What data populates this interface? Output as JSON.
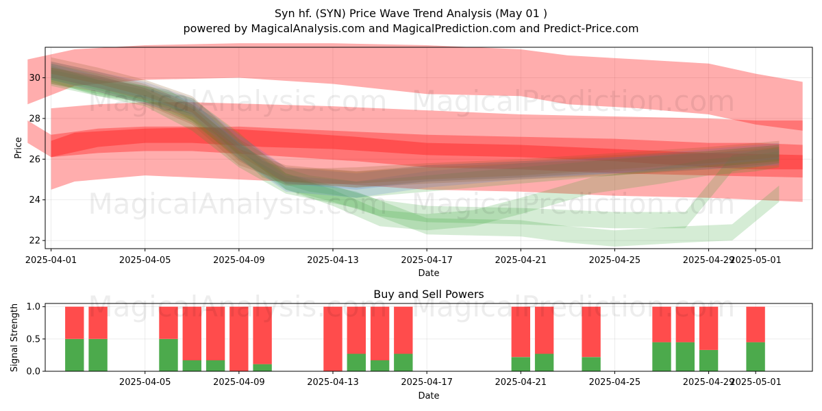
{
  "title_line1": "Syn hf. (SYN) Price Wave Trend Analysis (May 01 )",
  "title_line2": "powered by MagicalAnalysis.com and MagicalPrediction.com and Predict-Price.com",
  "watermarks": [
    "MagicalAnalysis.com",
    "MagicalPrediction.com"
  ],
  "colors": {
    "red_band": "#ff0000",
    "green_band": "#2ca02c",
    "blue_band": "#4a6fd0",
    "brown_band": "#8b5a2b",
    "buy": "#4caa4c",
    "sell": "#ff4c4c"
  },
  "chart_data": [
    {
      "type": "area",
      "xlabel": "Date",
      "ylabel": "Price",
      "xlim": [
        "2025-03-31 18:00",
        "2025-05-03 10:00"
      ],
      "ylim": [
        21.6,
        31.5
      ],
      "yticks": [
        22,
        24,
        26,
        28,
        30
      ],
      "x_tick_labels": [
        "2025-04-01",
        "2025-04-05",
        "2025-04-09",
        "2025-04-13",
        "2025-04-17",
        "2025-04-21",
        "2025-04-25",
        "2025-04-29",
        "2025-05-01"
      ],
      "x_tick_dates": [
        "2025-04-01",
        "2025-04-05",
        "2025-04-09",
        "2025-04-13",
        "2025-04-17",
        "2025-04-21",
        "2025-04-25",
        "2025-04-29",
        "2025-05-01"
      ],
      "grid": true,
      "red_bands": [
        {
          "dates": [
            "2025-03-31",
            "2025-04-02",
            "2025-04-05",
            "2025-04-09",
            "2025-04-13",
            "2025-04-17",
            "2025-04-21",
            "2025-04-23",
            "2025-04-26",
            "2025-04-29",
            "2025-05-01",
            "2025-05-03"
          ],
          "lower": [
            28.7,
            29.6,
            29.9,
            30.0,
            29.7,
            29.2,
            29.1,
            28.7,
            28.5,
            28.2,
            27.7,
            27.4
          ],
          "upper": [
            30.9,
            31.4,
            31.6,
            31.7,
            31.7,
            31.6,
            31.4,
            31.1,
            30.9,
            30.7,
            30.2,
            29.8
          ]
        },
        {
          "dates": [
            "2025-04-01",
            "2025-04-03",
            "2025-04-05",
            "2025-04-07",
            "2025-04-10",
            "2025-04-13",
            "2025-04-17",
            "2025-04-21",
            "2025-04-25",
            "2025-04-29",
            "2025-05-01",
            "2025-05-03"
          ],
          "lower": [
            26.1,
            26.6,
            26.8,
            26.8,
            26.6,
            26.5,
            26.2,
            26.1,
            25.9,
            25.6,
            25.5,
            25.5
          ],
          "upper": [
            28.5,
            28.7,
            28.8,
            28.8,
            28.7,
            28.6,
            28.4,
            28.2,
            28.1,
            28.0,
            27.9,
            27.9
          ]
        },
        {
          "dates": [
            "2025-03-31",
            "2025-04-01",
            "2025-04-03",
            "2025-04-05",
            "2025-04-07",
            "2025-04-10",
            "2025-04-14",
            "2025-04-17",
            "2025-04-21",
            "2025-04-25",
            "2025-04-29",
            "2025-05-03"
          ],
          "lower": [
            26.8,
            26.1,
            26.3,
            26.4,
            26.4,
            26.2,
            25.9,
            25.6,
            25.5,
            25.3,
            25.2,
            25.1
          ],
          "upper": [
            27.9,
            27.2,
            27.5,
            27.6,
            27.6,
            27.4,
            27.1,
            26.8,
            26.7,
            26.5,
            26.3,
            26.2
          ]
        },
        {
          "dates": [
            "2025-04-01",
            "2025-04-02",
            "2025-04-05",
            "2025-04-09",
            "2025-04-13",
            "2025-04-17",
            "2025-04-21",
            "2025-04-25",
            "2025-04-29",
            "2025-05-01",
            "2025-05-03"
          ],
          "lower": [
            24.5,
            24.9,
            25.2,
            25.0,
            24.8,
            24.5,
            24.4,
            24.2,
            24.1,
            24.0,
            23.9
          ],
          "upper": [
            26.9,
            27.3,
            27.5,
            27.6,
            27.4,
            27.2,
            27.1,
            27.0,
            26.8,
            26.8,
            26.7
          ]
        }
      ],
      "green_bands": [
        {
          "dates": [
            "2025-04-01",
            "2025-04-03",
            "2025-04-05",
            "2025-04-07",
            "2025-04-09",
            "2025-04-11",
            "2025-04-14",
            "2025-04-17",
            "2025-04-21",
            "2025-04-23",
            "2025-04-25",
            "2025-04-28",
            "2025-04-30",
            "2025-05-02"
          ],
          "lower": [
            29.8,
            29.1,
            28.6,
            27.4,
            25.6,
            24.3,
            23.6,
            22.3,
            22.2,
            21.9,
            21.7,
            21.9,
            22.0,
            23.9
          ],
          "upper": [
            30.6,
            29.9,
            29.4,
            28.2,
            26.4,
            25.1,
            24.4,
            23.1,
            23.0,
            22.7,
            22.5,
            22.7,
            22.8,
            24.7
          ]
        },
        {
          "dates": [
            "2025-04-01",
            "2025-04-03",
            "2025-04-05",
            "2025-04-07",
            "2025-04-09",
            "2025-04-11",
            "2025-04-13",
            "2025-04-15",
            "2025-04-17",
            "2025-04-19",
            "2025-04-21",
            "2025-04-24",
            "2025-04-27",
            "2025-04-29",
            "2025-05-01",
            "2025-05-02"
          ],
          "lower": [
            29.6,
            29.1,
            28.8,
            27.8,
            26.0,
            24.5,
            23.7,
            22.7,
            22.5,
            22.7,
            23.3,
            24.3,
            24.8,
            25.2,
            25.4,
            25.6
          ],
          "upper": [
            30.4,
            29.9,
            29.6,
            28.6,
            26.8,
            25.3,
            24.5,
            23.5,
            23.3,
            23.5,
            24.1,
            25.1,
            25.6,
            26.0,
            26.2,
            26.4
          ]
        },
        {
          "dates": [
            "2025-04-01",
            "2025-04-03",
            "2025-04-05",
            "2025-04-07",
            "2025-04-09",
            "2025-04-11",
            "2025-04-13",
            "2025-04-15",
            "2025-04-17",
            "2025-04-21",
            "2025-04-25",
            "2025-04-28",
            "2025-04-30",
            "2025-05-02"
          ],
          "lower": [
            29.9,
            29.4,
            28.8,
            28.2,
            26.5,
            24.5,
            23.9,
            23.2,
            22.9,
            22.8,
            22.6,
            22.6,
            25.4,
            25.8
          ],
          "upper": [
            30.7,
            30.2,
            29.6,
            29.0,
            27.3,
            25.3,
            24.7,
            24.0,
            23.7,
            23.6,
            23.4,
            23.4,
            26.2,
            26.6
          ]
        },
        {
          "dates": [
            "2025-04-01",
            "2025-04-03",
            "2025-04-06",
            "2025-04-08",
            "2025-04-10",
            "2025-04-12",
            "2025-04-14",
            "2025-04-16",
            "2025-04-19",
            "2025-04-22",
            "2025-04-25",
            "2025-04-28",
            "2025-05-01",
            "2025-05-02"
          ],
          "lower": [
            29.7,
            29.2,
            28.6,
            27.2,
            25.1,
            24.4,
            24.1,
            24.3,
            24.6,
            24.9,
            25.2,
            25.5,
            25.8,
            25.9
          ],
          "upper": [
            30.5,
            30.0,
            29.4,
            28.0,
            25.9,
            25.2,
            24.9,
            25.1,
            25.4,
            25.7,
            26.0,
            26.3,
            26.6,
            26.7
          ]
        }
      ],
      "blue_bands": [
        {
          "dates": [
            "2025-04-01",
            "2025-04-03",
            "2025-04-05",
            "2025-04-07",
            "2025-04-09",
            "2025-04-11",
            "2025-04-14",
            "2025-04-17",
            "2025-04-21",
            "2025-04-25",
            "2025-04-29",
            "2025-05-02"
          ],
          "lower": [
            29.9,
            29.3,
            28.7,
            28.1,
            26.0,
            24.4,
            24.1,
            24.6,
            25.0,
            25.3,
            25.7,
            26.0
          ],
          "upper": [
            30.7,
            30.1,
            29.5,
            28.9,
            26.8,
            25.2,
            24.9,
            25.4,
            25.8,
            26.1,
            26.5,
            26.8
          ]
        },
        {
          "dates": [
            "2025-04-01",
            "2025-04-03",
            "2025-04-05",
            "2025-04-07",
            "2025-04-09",
            "2025-04-11",
            "2025-04-14",
            "2025-04-17",
            "2025-04-21",
            "2025-04-25",
            "2025-04-29",
            "2025-05-02"
          ],
          "lower": [
            30.0,
            29.5,
            29.0,
            28.2,
            26.4,
            24.8,
            24.5,
            24.9,
            25.1,
            25.3,
            25.5,
            25.7
          ],
          "upper": [
            30.8,
            30.3,
            29.8,
            29.0,
            27.2,
            25.6,
            25.3,
            25.7,
            25.9,
            26.1,
            26.3,
            26.5
          ]
        }
      ],
      "brown_bands": [
        {
          "dates": [
            "2025-04-01",
            "2025-04-03",
            "2025-04-05",
            "2025-04-07",
            "2025-04-09",
            "2025-04-11",
            "2025-04-14",
            "2025-04-17",
            "2025-04-21",
            "2025-04-25",
            "2025-04-29",
            "2025-05-02"
          ],
          "lower": [
            30.0,
            29.5,
            28.9,
            27.9,
            25.9,
            24.7,
            24.8,
            25.0,
            25.2,
            25.5,
            25.8,
            26.1
          ],
          "upper": [
            30.8,
            30.3,
            29.7,
            28.7,
            26.7,
            25.5,
            25.6,
            25.8,
            26.0,
            26.3,
            26.6,
            26.9
          ]
        },
        {
          "dates": [
            "2025-04-01",
            "2025-04-03",
            "2025-04-05",
            "2025-04-07",
            "2025-04-09",
            "2025-04-11",
            "2025-04-14",
            "2025-04-17",
            "2025-04-21",
            "2025-04-25",
            "2025-04-29",
            "2025-05-02"
          ],
          "lower": [
            29.7,
            29.3,
            28.7,
            27.7,
            25.7,
            24.9,
            24.6,
            24.9,
            25.1,
            25.4,
            25.6,
            25.9
          ],
          "upper": [
            30.5,
            30.1,
            29.5,
            28.5,
            26.5,
            25.7,
            25.4,
            25.7,
            25.9,
            26.2,
            26.4,
            26.7
          ]
        },
        {
          "dates": [
            "2025-04-01",
            "2025-04-03",
            "2025-04-05",
            "2025-04-07",
            "2025-04-09",
            "2025-04-11",
            "2025-04-14",
            "2025-04-17",
            "2025-04-21",
            "2025-04-25",
            "2025-04-29",
            "2025-05-02"
          ],
          "lower": [
            30.2,
            29.7,
            29.1,
            28.3,
            26.2,
            24.8,
            24.6,
            24.8,
            25.0,
            25.2,
            25.5,
            25.8
          ],
          "upper": [
            31.0,
            30.5,
            29.9,
            29.1,
            27.0,
            25.6,
            25.4,
            25.6,
            25.8,
            26.0,
            26.3,
            26.6
          ]
        }
      ]
    },
    {
      "type": "bar",
      "title": "Buy and Sell Powers",
      "xlabel": "Date",
      "ylabel": "Signal Strength",
      "xlim": [
        "2025-03-31 18:00",
        "2025-05-03 10:00"
      ],
      "ylim": [
        0,
        1.05
      ],
      "yticks": [
        0.0,
        0.5,
        1.0
      ],
      "ytick_labels": [
        "0.0",
        "0.5",
        "1.0"
      ],
      "x_tick_labels": [
        "2025-04-05",
        "2025-04-09",
        "2025-04-13",
        "2025-04-17",
        "2025-04-21",
        "2025-04-25",
        "2025-04-29",
        "2025-05-01"
      ],
      "x_tick_dates": [
        "2025-04-05",
        "2025-04-09",
        "2025-04-13",
        "2025-04-17",
        "2025-04-21",
        "2025-04-25",
        "2025-04-29",
        "2025-05-01"
      ],
      "grid": true,
      "dates": [
        "2025-04-02",
        "2025-04-03",
        "2025-04-06",
        "2025-04-07",
        "2025-04-08",
        "2025-04-09",
        "2025-04-10",
        "2025-04-13",
        "2025-04-14",
        "2025-04-15",
        "2025-04-16",
        "2025-04-21",
        "2025-04-22",
        "2025-04-24",
        "2025-04-27",
        "2025-04-28",
        "2025-04-29",
        "2025-05-01"
      ],
      "series": [
        {
          "name": "Buy",
          "values": [
            0.5,
            0.5,
            0.5,
            0.17,
            0.17,
            0.0,
            0.11,
            0.0,
            0.27,
            0.17,
            0.27,
            0.22,
            0.27,
            0.22,
            0.45,
            0.45,
            0.33,
            0.45
          ]
        },
        {
          "name": "Sell",
          "values": [
            0.5,
            0.5,
            0.5,
            0.83,
            0.83,
            1.0,
            0.89,
            1.0,
            0.73,
            0.83,
            0.73,
            0.78,
            0.73,
            0.78,
            0.55,
            0.55,
            0.67,
            0.55
          ]
        }
      ]
    }
  ]
}
